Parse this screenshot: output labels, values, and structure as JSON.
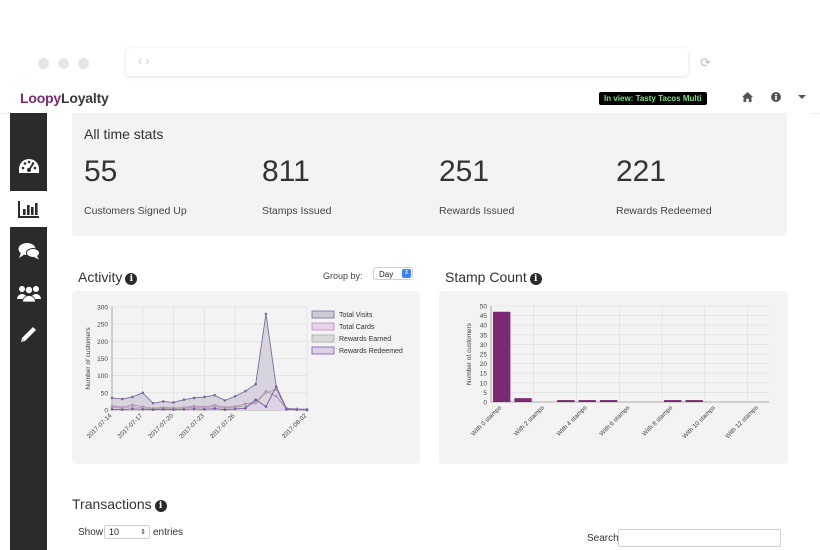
{
  "browser": {
    "nav_arrows": "‹ ›",
    "reload_glyph": "⟳"
  },
  "app": {
    "logo_part1": "Loopy",
    "logo_part2": "Loyalty",
    "in_view": "In view: Tasty Tacos Multi"
  },
  "topbar_icons": [
    "home-icon",
    "info-icon",
    "chevron-down-icon"
  ],
  "sidebar": {
    "items": [
      {
        "icon": "dashboard-gauge-icon",
        "active": false
      },
      {
        "icon": "bar-chart-icon",
        "active": true
      },
      {
        "icon": "chat-bubbles-icon",
        "active": false
      },
      {
        "icon": "users-group-icon",
        "active": false
      },
      {
        "icon": "pencil-icon",
        "active": false
      }
    ]
  },
  "all_time_stats": {
    "title": "All time stats",
    "stats": [
      {
        "value": "55",
        "label": "Customers Signed Up"
      },
      {
        "value": "811",
        "label": "Stamps Issued"
      },
      {
        "value": "251",
        "label": "Rewards Issued"
      },
      {
        "value": "221",
        "label": "Rewards Redeemed"
      }
    ]
  },
  "activity": {
    "title": "Activity",
    "group_by_label": "Group by:",
    "group_by_value": "Day"
  },
  "stamp_count": {
    "title": "Stamp Count"
  },
  "transactions": {
    "title": "Transactions",
    "show_label": "Show",
    "page_size": "10",
    "entries_label": "entries",
    "search_label": "Search:"
  },
  "colors": {
    "accent_purple": "#7d2a75",
    "sidebar_bg": "#2b2b2b",
    "in_view_text": "#7be07b"
  },
  "chart_data": [
    {
      "type": "area",
      "x": [
        "2017-07-14",
        "2017-07-15",
        "2017-07-16",
        "2017-07-17",
        "2017-07-18",
        "2017-07-19",
        "2017-07-20",
        "2017-07-21",
        "2017-07-22",
        "2017-07-23",
        "2017-07-24",
        "2017-07-25",
        "2017-07-26",
        "2017-07-27",
        "2017-07-28",
        "2017-07-29",
        "2017-07-30",
        "2017-07-31",
        "2017-08-01",
        "2017-08-02"
      ],
      "xtick_labels": [
        "2017-07-14",
        "2017-07-17",
        "2017-07-20",
        "2017-07-23",
        "2017-07-26",
        "2017-08-02"
      ],
      "xtick_indices": [
        0,
        3,
        6,
        9,
        12,
        19
      ],
      "series": [
        {
          "name": "Total Visits",
          "fill": "#cfcad8",
          "stroke": "#7a6a9a",
          "values": [
            35,
            32,
            38,
            50,
            20,
            25,
            22,
            30,
            35,
            38,
            43,
            28,
            40,
            55,
            75,
            280,
            68,
            5,
            3,
            2
          ]
        },
        {
          "name": "Total Cards",
          "fill": "#e8d3ea",
          "stroke": "#b98bbd",
          "values": [
            12,
            8,
            15,
            10,
            5,
            8,
            6,
            7,
            12,
            9,
            14,
            8,
            10,
            18,
            22,
            55,
            40,
            3,
            2,
            1
          ]
        },
        {
          "name": "Rewards Earned",
          "fill": "#d9d9d9",
          "stroke": "#a8a8a8",
          "values": [
            8,
            5,
            10,
            6,
            3,
            5,
            4,
            6,
            8,
            6,
            10,
            5,
            8,
            12,
            20,
            50,
            60,
            2,
            1,
            0
          ]
        },
        {
          "name": "Rewards Redeemed",
          "fill": "#ddd2ea",
          "stroke": "#7f58a8",
          "values": [
            2,
            1,
            3,
            2,
            1,
            2,
            1,
            2,
            3,
            2,
            4,
            1,
            3,
            5,
            30,
            10,
            68,
            2,
            1,
            0
          ]
        }
      ],
      "ylabel": "Number of customers",
      "ylim": [
        0,
        300
      ],
      "yticks": [
        0,
        50,
        100,
        150,
        200,
        250,
        300
      ],
      "legend_placement": "top-right",
      "grid": true
    },
    {
      "type": "bar",
      "categories": [
        "With 0 stamps",
        "With 1 stamp",
        "With 2 stamps",
        "With 3 stamps",
        "With 4 stamps",
        "With 5 stamps",
        "With 6 stamps",
        "With 7 stamps",
        "With 8 stamps",
        "With 9 stamps",
        "With 10 stamps",
        "With 11 stamps",
        "With 12 stamps"
      ],
      "xtick_labels": [
        "With 0 stamps",
        "With 2 stamps",
        "With 4 stamps",
        "With 6 stamps",
        "With 8 stamps",
        "With 10 stamps",
        "With 12 stamps"
      ],
      "xtick_indices": [
        0,
        2,
        4,
        6,
        8,
        10,
        12
      ],
      "values": [
        47,
        2,
        0,
        1,
        1,
        1,
        0,
        0,
        1,
        1,
        0,
        0,
        0
      ],
      "ylabel": "Number of customers",
      "ylim": [
        0,
        50
      ],
      "yticks": [
        0,
        5,
        10,
        15,
        20,
        25,
        30,
        35,
        40,
        45,
        50
      ],
      "bar_color": "#7d2a75",
      "grid": true
    }
  ]
}
